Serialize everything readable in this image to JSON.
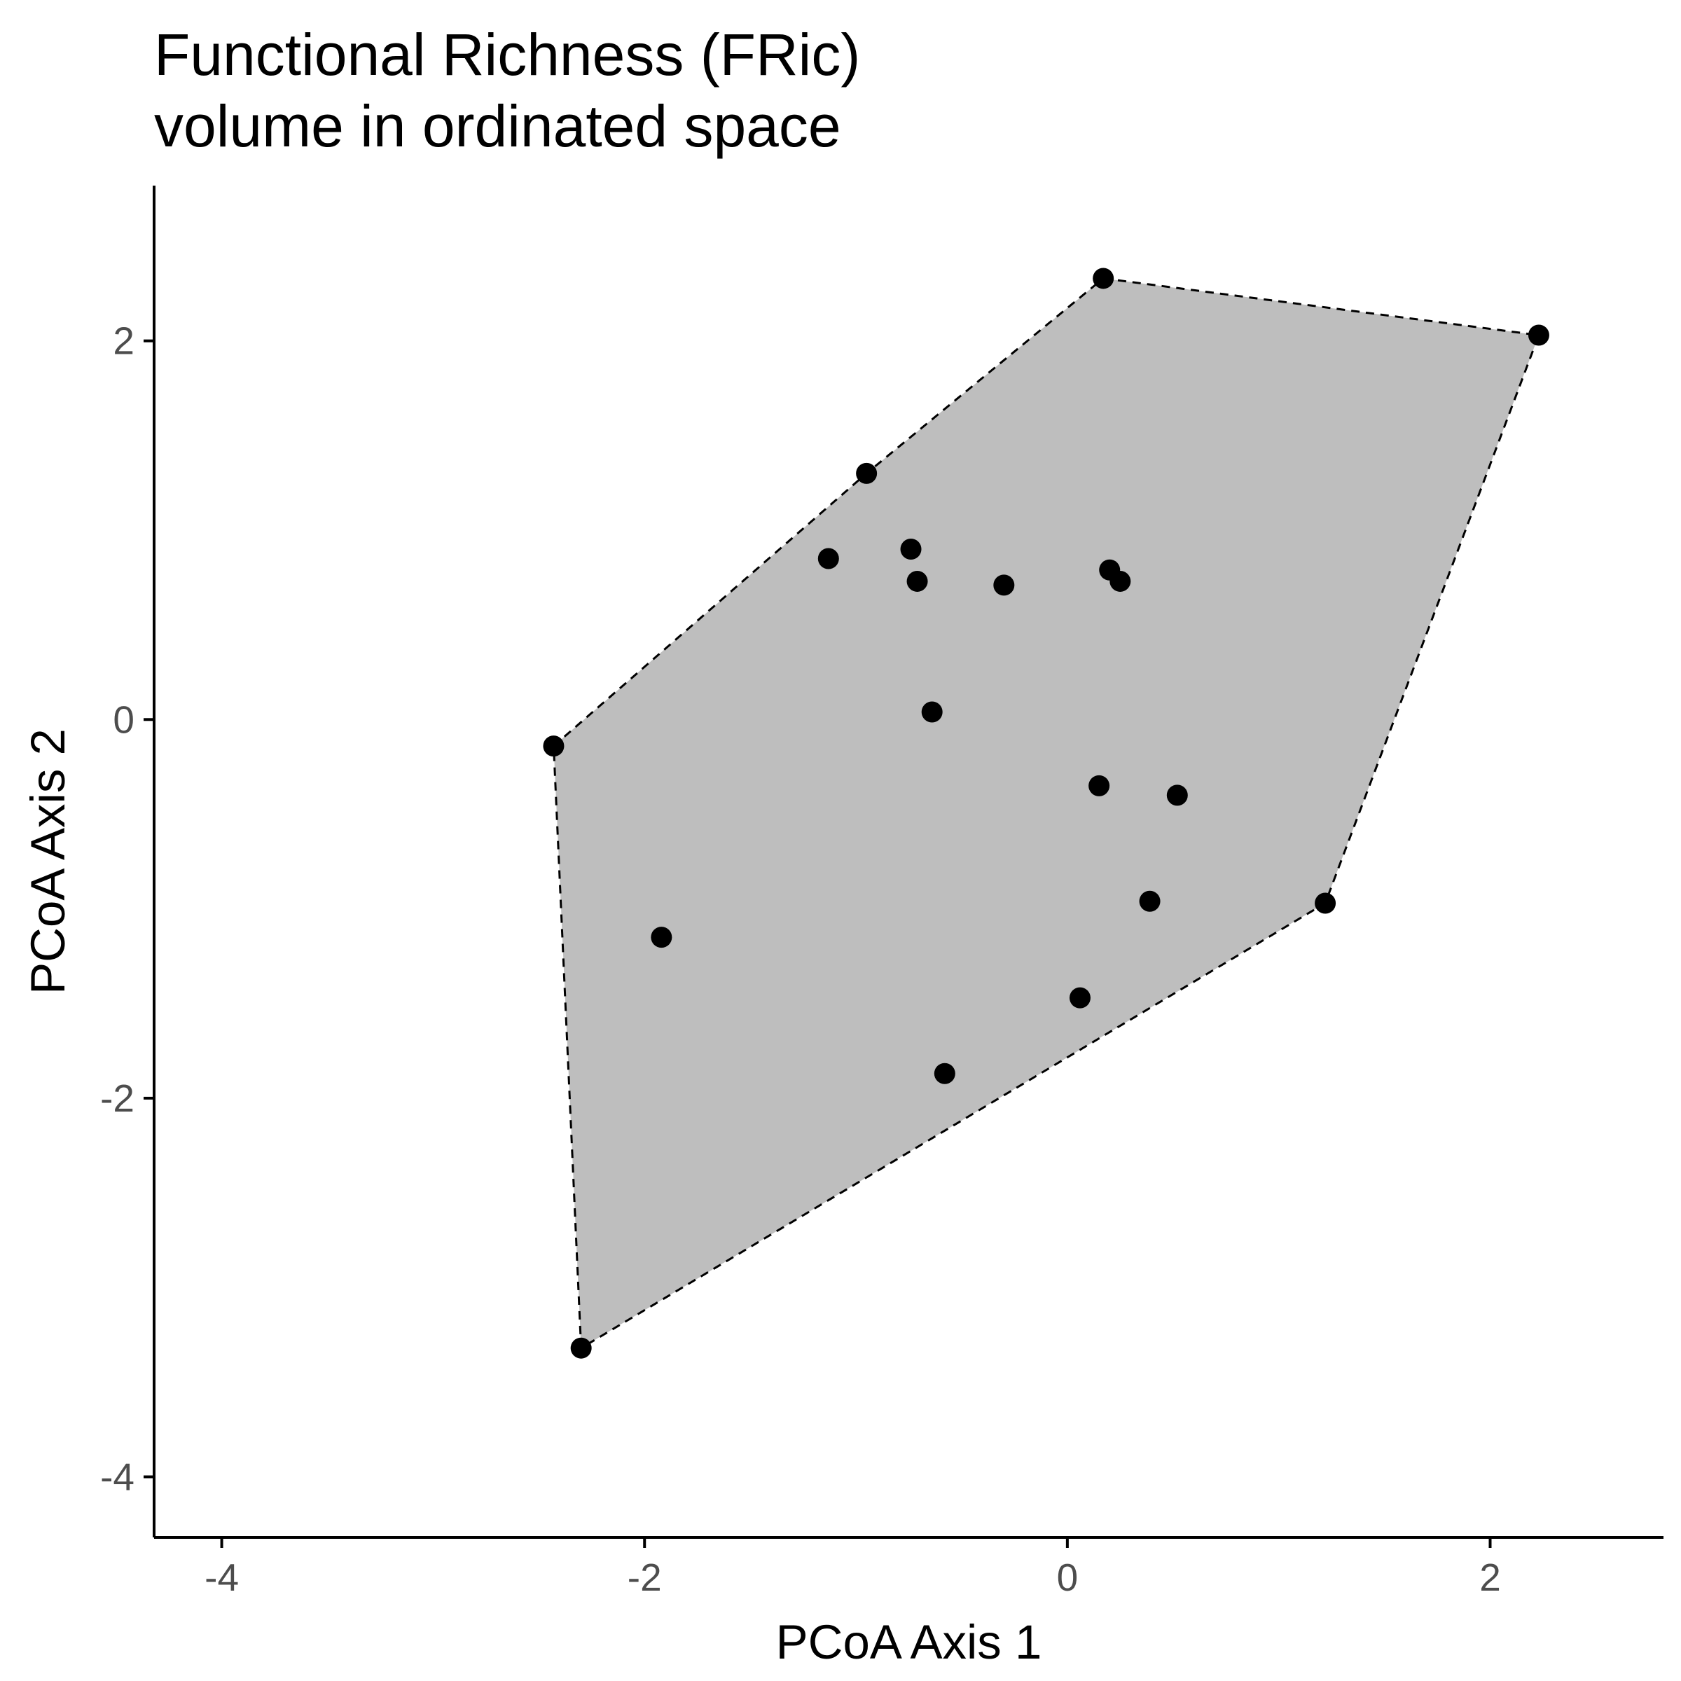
{
  "chart_data": {
    "type": "scatter",
    "title": "Functional Richness (FRic)",
    "subtitle": "volume in ordinated space",
    "xlabel": "PCoA Axis 1",
    "ylabel": "PCoA Axis 2",
    "xlim": [
      -4.32,
      2.82
    ],
    "ylim": [
      -4.32,
      2.82
    ],
    "x_ticks": [
      {
        "value": -4,
        "label": "-4"
      },
      {
        "value": -2,
        "label": "-2"
      },
      {
        "value": 0,
        "label": "0"
      },
      {
        "value": 2,
        "label": "2"
      }
    ],
    "y_ticks": [
      {
        "value": -4,
        "label": "-4"
      },
      {
        "value": -2,
        "label": "-2"
      },
      {
        "value": 0,
        "label": "0"
      },
      {
        "value": 2,
        "label": "2"
      }
    ],
    "grid": false,
    "points": [
      {
        "x": 0.17,
        "y": 2.33
      },
      {
        "x": 2.23,
        "y": 2.03
      },
      {
        "x": -0.95,
        "y": 1.3
      },
      {
        "x": -1.13,
        "y": 0.85
      },
      {
        "x": -0.74,
        "y": 0.9
      },
      {
        "x": -0.71,
        "y": 0.73
      },
      {
        "x": -0.3,
        "y": 0.71
      },
      {
        "x": 0.2,
        "y": 0.79
      },
      {
        "x": 0.25,
        "y": 0.73
      },
      {
        "x": -0.64,
        "y": 0.04
      },
      {
        "x": -2.43,
        "y": -0.14
      },
      {
        "x": 0.15,
        "y": -0.35
      },
      {
        "x": 0.52,
        "y": -0.4
      },
      {
        "x": 0.39,
        "y": -0.96
      },
      {
        "x": 1.22,
        "y": -0.97
      },
      {
        "x": -1.92,
        "y": -1.15
      },
      {
        "x": 0.06,
        "y": -1.47
      },
      {
        "x": -0.58,
        "y": -1.87
      },
      {
        "x": -2.3,
        "y": -3.32
      }
    ],
    "hull": [
      {
        "x": 0.17,
        "y": 2.33
      },
      {
        "x": 2.23,
        "y": 2.03
      },
      {
        "x": 1.22,
        "y": -0.97
      },
      {
        "x": -2.3,
        "y": -3.32
      },
      {
        "x": -2.43,
        "y": -0.14
      },
      {
        "x": -0.95,
        "y": 1.3
      }
    ],
    "hull_fill": "#bebebe",
    "point_color": "#000000",
    "hull_line": "dashed"
  }
}
